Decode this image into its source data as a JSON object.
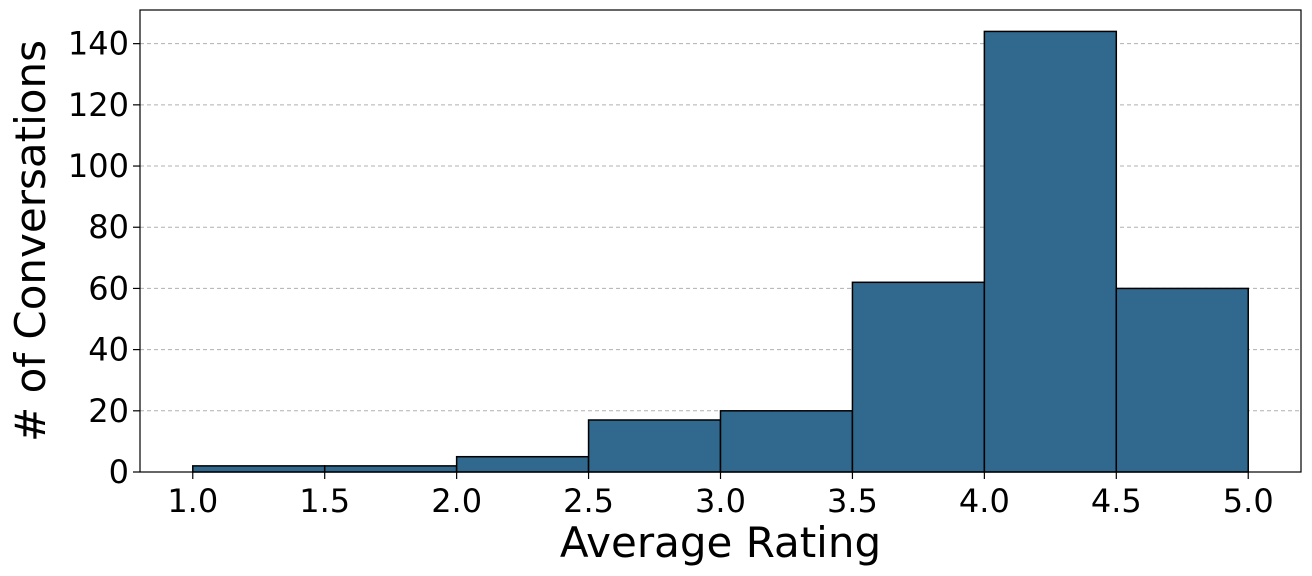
{
  "chart_data": {
    "type": "bar",
    "title": "",
    "xlabel": "Average Rating",
    "ylabel": "# of Conversations",
    "bin_edges": [
      1.0,
      1.5,
      2.0,
      2.5,
      3.0,
      3.5,
      4.0,
      4.5,
      5.0
    ],
    "values": [
      2,
      2,
      5,
      17,
      20,
      62,
      144,
      60
    ],
    "x_ticks": [
      "1.0",
      "1.5",
      "2.0",
      "2.5",
      "3.0",
      "3.5",
      "4.0",
      "4.5",
      "5.0"
    ],
    "y_ticks": [
      "0",
      "20",
      "40",
      "60",
      "80",
      "100",
      "120",
      "140"
    ],
    "xlim": [
      0.8,
      5.2
    ],
    "ylim": [
      0,
      151
    ],
    "grid": "y-dashed",
    "legend": "none",
    "colors": {
      "bar": "#31688e",
      "edge": "#000000",
      "grid": "#b0b0b0"
    }
  }
}
